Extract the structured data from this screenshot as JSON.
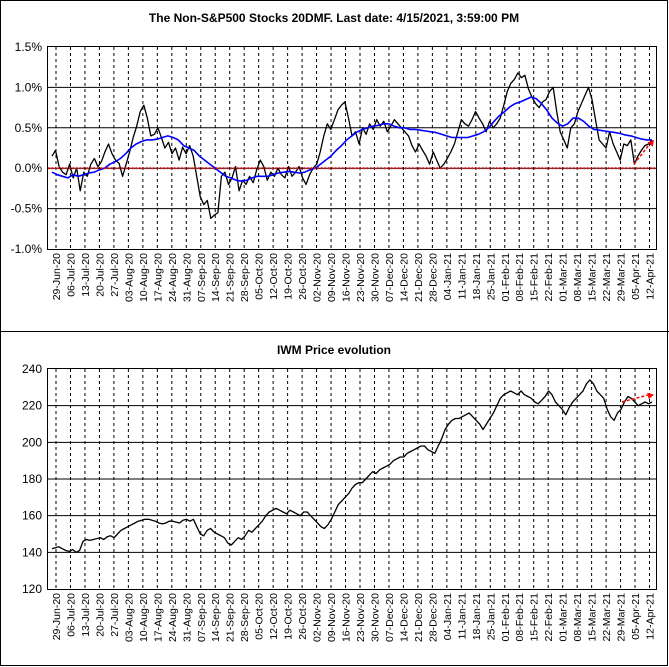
{
  "chart_data": [
    {
      "type": "line",
      "title": "The Non-S&P500 Stocks 20DMF. Last date: 4/15/2021, 3:59:00 PM",
      "xlabel": "",
      "ylabel": "",
      "y_tick_labels": [
        "1.5%",
        "1.0%",
        "0.5%",
        "0.0%",
        "-0.5%",
        "-1.0%"
      ],
      "ylim": [
        -1.0,
        1.5
      ],
      "grid": true,
      "x_tick_labels": [
        "29-Jun-20",
        "06-Jul-20",
        "13-Jul-20",
        "20-Jul-20",
        "27-Jul-20",
        "03-Aug-20",
        "10-Aug-20",
        "17-Aug-20",
        "24-Aug-20",
        "31-Aug-20",
        "07-Sep-20",
        "14-Sep-20",
        "21-Sep-20",
        "28-Sep-20",
        "05-Oct-20",
        "12-Oct-20",
        "19-Oct-20",
        "26-Oct-20",
        "02-Nov-20",
        "09-Nov-20",
        "16-Nov-20",
        "23-Nov-20",
        "30-Nov-20",
        "07-Dec-20",
        "14-Dec-20",
        "21-Dec-20",
        "28-Dec-20",
        "04-Jan-21",
        "11-Jan-21",
        "18-Jan-21",
        "25-Jan-21",
        "01-Feb-21",
        "08-Feb-21",
        "15-Feb-21",
        "22-Feb-21",
        "01-Mar-21",
        "08-Mar-21",
        "15-Mar-21",
        "22-Mar-21",
        "29-Mar-21",
        "05-Apr-21",
        "12-Apr-21"
      ],
      "series": [
        {
          "color": "#000000",
          "values": [
            0.15,
            0.22,
            0.02,
            -0.05,
            -0.08,
            0.05,
            -0.12,
            0.0,
            -0.28,
            -0.05,
            -0.1,
            0.05,
            0.12,
            0.02,
            0.08,
            0.2,
            0.3,
            0.18,
            0.1,
            0.06,
            -0.1,
            0.05,
            0.2,
            0.38,
            0.52,
            0.7,
            0.78,
            0.62,
            0.4,
            0.42,
            0.5,
            0.38,
            0.25,
            0.32,
            0.18,
            0.25,
            0.1,
            0.26,
            0.18,
            0.28,
            0.15,
            -0.1,
            -0.35,
            -0.45,
            -0.4,
            -0.62,
            -0.58,
            -0.55,
            -0.1,
            -0.05,
            -0.2,
            -0.12,
            0.02,
            -0.28,
            -0.15,
            -0.2,
            -0.1,
            -0.18,
            -0.02,
            0.1,
            0.02,
            -0.15,
            -0.05,
            -0.1,
            0.0,
            -0.08,
            -0.12,
            0.02,
            -0.1,
            -0.05,
            0.02,
            -0.12,
            -0.2,
            -0.08,
            0.0,
            0.05,
            0.2,
            0.4,
            0.55,
            0.48,
            0.6,
            0.72,
            0.78,
            0.82,
            0.62,
            0.4,
            0.45,
            0.3,
            0.5,
            0.42,
            0.55,
            0.48,
            0.6,
            0.52,
            0.58,
            0.45,
            0.52,
            0.6,
            0.55,
            0.5,
            0.45,
            0.4,
            0.28,
            0.2,
            0.3,
            0.22,
            0.15,
            0.05,
            0.2,
            0.1,
            0.0,
            0.05,
            0.12,
            0.2,
            0.3,
            0.45,
            0.6,
            0.55,
            0.52,
            0.6,
            0.7,
            0.62,
            0.55,
            0.45,
            0.58,
            0.5,
            0.55,
            0.62,
            0.78,
            0.95,
            1.05,
            1.1,
            1.18,
            1.12,
            1.15,
            0.98,
            0.88,
            0.8,
            0.75,
            0.82,
            0.85,
            0.95,
            1.0,
            0.7,
            0.45,
            0.35,
            0.25,
            0.5,
            0.55,
            0.7,
            0.8,
            0.9,
            1.0,
            0.85,
            0.6,
            0.35,
            0.3,
            0.25,
            0.45,
            0.3,
            0.2,
            0.1,
            0.3,
            0.28,
            0.35,
            0.05,
            0.15,
            0.22,
            0.28,
            0.3,
            0.35
          ]
        },
        {
          "color": "#0000ff",
          "values": [
            -0.05,
            -0.08,
            -0.1,
            -0.12,
            -0.08,
            -0.1,
            -0.08,
            -0.06,
            -0.05,
            -0.02,
            0.0,
            0.05,
            0.08,
            0.12,
            0.18,
            0.25,
            0.3,
            0.33,
            0.35,
            0.35,
            0.36,
            0.38,
            0.4,
            0.38,
            0.35,
            0.28,
            0.25,
            0.22,
            0.15,
            0.1,
            0.05,
            0.0,
            -0.05,
            -0.1,
            -0.12,
            -0.15,
            -0.16,
            -0.15,
            -0.12,
            -0.1,
            -0.1,
            -0.1,
            -0.08,
            -0.06,
            -0.05,
            -0.04,
            -0.05,
            -0.06,
            -0.05,
            -0.02,
            0.0,
            0.05,
            0.1,
            0.15,
            0.22,
            0.28,
            0.35,
            0.4,
            0.45,
            0.48,
            0.5,
            0.52,
            0.53,
            0.55,
            0.55,
            0.52,
            0.5,
            0.5,
            0.48,
            0.48,
            0.47,
            0.46,
            0.45,
            0.44,
            0.42,
            0.4,
            0.38,
            0.38,
            0.38,
            0.38,
            0.4,
            0.42,
            0.45,
            0.5,
            0.58,
            0.65,
            0.7,
            0.76,
            0.8,
            0.82,
            0.85,
            0.88,
            0.86,
            0.8,
            0.72,
            0.62,
            0.56,
            0.52,
            0.55,
            0.62,
            0.62,
            0.58,
            0.52,
            0.48,
            0.47,
            0.46,
            0.45,
            0.44,
            0.43,
            0.41,
            0.4,
            0.38,
            0.36,
            0.35,
            0.35
          ]
        },
        {
          "name": "",
          "color": "#ff0000",
          "style": "dotted-zero-line",
          "values": [
            0.0,
            0.0
          ]
        }
      ],
      "annotation_arrow": {
        "from": 0.05,
        "to": 0.35,
        "color": "#ff0000"
      }
    },
    {
      "type": "line",
      "title": "IWM Price evolution",
      "xlabel": "",
      "ylabel": "",
      "y_tick_labels": [
        "240",
        "220",
        "200",
        "180",
        "160",
        "140",
        "120"
      ],
      "ylim": [
        120,
        240
      ],
      "grid": true,
      "x_tick_labels": [
        "29-Jun-20",
        "06-Jul-20",
        "13-Jul-20",
        "20-Jul-20",
        "27-Jul-20",
        "03-Aug-20",
        "10-Aug-20",
        "17-Aug-20",
        "24-Aug-20",
        "31-Aug-20",
        "07-Sep-20",
        "14-Sep-20",
        "21-Sep-20",
        "28-Sep-20",
        "05-Oct-20",
        "12-Oct-20",
        "19-Oct-20",
        "26-Oct-20",
        "02-Nov-20",
        "09-Nov-20",
        "16-Nov-20",
        "23-Nov-20",
        "30-Nov-20",
        "07-Dec-20",
        "14-Dec-20",
        "21-Dec-20",
        "28-Dec-20",
        "04-Jan-21",
        "11-Jan-21",
        "18-Jan-21",
        "25-Jan-21",
        "01-Feb-21",
        "08-Feb-21",
        "15-Feb-21",
        "22-Feb-21",
        "01-Mar-21",
        "08-Mar-21",
        "15-Mar-21",
        "22-Mar-21",
        "29-Mar-21",
        "05-Apr-21",
        "12-Apr-21"
      ],
      "series": [
        {
          "color": "#000000",
          "values": [
            142,
            142.5,
            143,
            142,
            141,
            140.5,
            141.5,
            140,
            141,
            146,
            147,
            146.5,
            147,
            147.5,
            148,
            147,
            148.5,
            149,
            148,
            150,
            152,
            153,
            154,
            155,
            156,
            157,
            157.5,
            158,
            158,
            157.5,
            157,
            156,
            155.5,
            156,
            157,
            157,
            156.5,
            156,
            157.5,
            158,
            157,
            158,
            154,
            150,
            149,
            152,
            153,
            151,
            150,
            149,
            148,
            145,
            144,
            146,
            148,
            147,
            149,
            152,
            151,
            153,
            155,
            157,
            160,
            162,
            163,
            164,
            163,
            162,
            161,
            163,
            162,
            161,
            160,
            162,
            162,
            160,
            158,
            156,
            154,
            153,
            155,
            158,
            162,
            166,
            168,
            170,
            172,
            175,
            177,
            178,
            178,
            180,
            182,
            184,
            183,
            185,
            186,
            187,
            188,
            190,
            191,
            192,
            192,
            194,
            195,
            196,
            197,
            198,
            198,
            196,
            195,
            194,
            198,
            202,
            207,
            210,
            212,
            213,
            213,
            214,
            215,
            216,
            214,
            212,
            210,
            207,
            210,
            213,
            216,
            220,
            224,
            226,
            227,
            228,
            227,
            226,
            228,
            226,
            225,
            224,
            222,
            221,
            223,
            225,
            228,
            226,
            222,
            220,
            218,
            215,
            219,
            222,
            224,
            226,
            228,
            232,
            234,
            232,
            228,
            226,
            224,
            218,
            214,
            212,
            216,
            218,
            222,
            225,
            224,
            222,
            220,
            221,
            222,
            221,
            222
          ]
        }
      ],
      "annotation_arrow": {
        "from": 222,
        "to": 226,
        "color": "#ff0000"
      }
    }
  ]
}
